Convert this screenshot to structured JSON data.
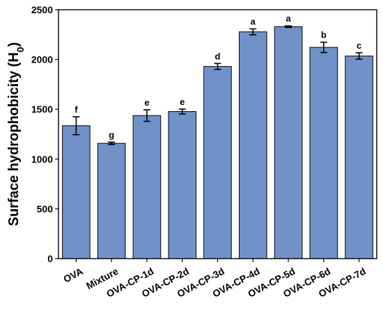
{
  "chart_data": {
    "type": "bar",
    "categories": [
      "OVA",
      "Mixture",
      "OVA-CP-1d",
      "OVA-CP-2d",
      "OVA-CP-3d",
      "OVA-CP-4d",
      "OVA-CP-5d",
      "OVA-CP-6d",
      "OVA-CP-7d"
    ],
    "values": [
      1335,
      1158,
      1437,
      1477,
      1930,
      2278,
      2330,
      2122,
      2035
    ],
    "errors": [
      90,
      12,
      58,
      25,
      30,
      30,
      8,
      52,
      32
    ],
    "significance": [
      "f",
      "g",
      "e",
      "e",
      "d",
      "a",
      "a",
      "b",
      "c"
    ],
    "title": "",
    "xlabel": "",
    "ylabel_main": "Surface hydrophobicity (H",
    "ylabel_sub": "0",
    "ylabel_close": ")",
    "ylim": [
      0,
      2500
    ],
    "yticks": [
      "0",
      "500",
      "1000",
      "1500",
      "2000",
      "2500"
    ],
    "bar_color": "#7092c9",
    "grid": false,
    "legend": "none"
  }
}
